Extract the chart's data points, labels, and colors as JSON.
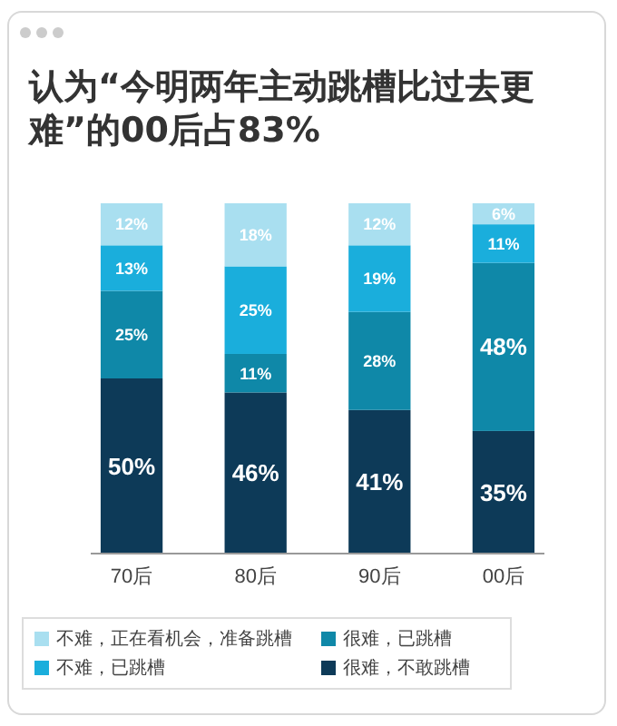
{
  "chart_data": {
    "type": "bar",
    "title": "认为“今明两年主动跳槽比过去更难”的00后占83%",
    "categories": [
      "70后",
      "80后",
      "90后",
      "00后"
    ],
    "stacked": true,
    "tick_labels": "x",
    "legend": "bottom",
    "series": [
      {
        "name": "很难，不敢跳槽",
        "color": "#0d3a58",
        "values": [
          50,
          46,
          41,
          35
        ],
        "value_labels": [
          "50%",
          "46%",
          "41%",
          "35%"
        ]
      },
      {
        "name": "很难，已跳槽",
        "color": "#0f88a8",
        "values": [
          25,
          11,
          28,
          48
        ],
        "value_labels": [
          "25%",
          "11%",
          "28%",
          "48%"
        ]
      },
      {
        "name": "不难，已跳槽",
        "color": "#1aaedc",
        "values": [
          13,
          25,
          19,
          11
        ],
        "value_labels": [
          "13%",
          "25%",
          "19%",
          "11%"
        ]
      },
      {
        "name": "不难，正在看机会，准备跳槽",
        "color": "#a9dff0",
        "values": [
          12,
          18,
          12,
          6
        ],
        "value_labels": [
          "12%",
          "18%",
          "12%",
          "6%"
        ]
      }
    ]
  }
}
